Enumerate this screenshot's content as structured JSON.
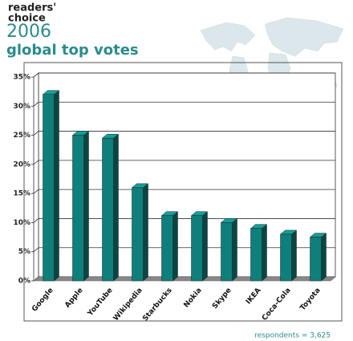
{
  "header": {
    "brand_line_1": "readers'",
    "brand_line_2": "choice",
    "year": "2006"
  },
  "chart_data": {
    "type": "bar3d",
    "title": "global top votes",
    "categories": [
      "Google",
      "Apple",
      "YouTube",
      "Wikipedia",
      "Starbucks",
      "Nokia",
      "Skype",
      "IKEA",
      "Coca-Cola",
      "Toyota"
    ],
    "values": [
      32,
      25,
      24.5,
      16,
      11.2,
      11.2,
      10,
      9,
      8,
      7.5
    ],
    "color": "#0e7f7a",
    "ylim": [
      0,
      35
    ],
    "yticks": [
      {
        "value": 0,
        "label": "0%"
      },
      {
        "value": 5,
        "label": "5%"
      },
      {
        "value": 10,
        "label": "10%"
      },
      {
        "value": 15,
        "label": "15%"
      },
      {
        "value": 20,
        "label": "20%"
      },
      {
        "value": 25,
        "label": "25%"
      },
      {
        "value": 30,
        "label": "30%"
      },
      {
        "value": 35,
        "label": "35%"
      }
    ],
    "grid": true,
    "footnote": "respondents = 3,625"
  }
}
